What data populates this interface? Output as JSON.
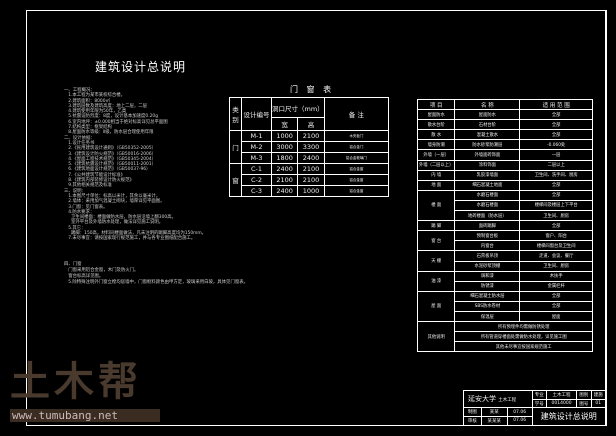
{
  "title": "建筑设计总说明",
  "notes": [
    "一、工程概况：",
    "   1.本工程为某市某校综合楼。",
    "   2.建筑面积：8000㎡",
    "   3.建筑层数及建筑高度：地上二层，二层",
    "   4.建筑使用年限为50年，乙类",
    "   5.抗震设防烈度：8度，设计基本加速度0.20g",
    "   6.室内地坪：±0.000相当于绝对标高详见总平面图",
    "   7.结构类型：框架结构",
    "   8.屋面防水等级：Ⅱ级，防水层合理使用年限",
    "二、设计依据：",
    "   1.设计任务书",
    "   2.《民用建筑设计通则》（GB50352-2005）",
    "   3.《建筑设计防火规范》（GB50016-2006）",
    "   4.《屋面工程技术规范》（GB50345-2004）",
    "   5.《建筑抗震设计规范》（GB50011-2001）",
    "   6.《建筑地面设计规范》（GB50037-96）",
    "   7.《公共建筑节能设计标准》",
    "   8.《建筑内部装修设计防火规范》",
    "   9.其他相关规范及标准",
    "三、说明：",
    "   1.本图尺寸单位：标高以米计，其余以毫米计。",
    "   2.墙体：采用加气混凝土砌块，墙厚详见平面图。",
    "   3.门窗：见门窗表。",
    "   4.防水要求：",
    "     卫生间楼面：楼面做防水层，防水层沿墙上翻300高。",
    "     室外平台及外墙防水处理，做法详见施工说明。",
    "   5.其它：",
    "     踢脚：150高，材料同楼面做法，凡未注明的踢脚高度均为150mm。",
    "   7.未尽事宜：请按国家现行规范施工，并与各专业图纸配合施工。"
  ],
  "notes2": [
    "四、门窗",
    "   门窗采用铝合金窗，木门及防火门。",
    "   窗台标高详见图。",
    "   5.除特殊注明外门窗立樘均居墙中，门窗框料颜色由甲方定，玻璃采用白玻，具体见门窗表。"
  ],
  "door_window": {
    "title": "门 窗 表",
    "headers": {
      "type": "类别",
      "code": "设计编号",
      "size": "洞口尺寸（mm）",
      "width": "宽",
      "height": "高",
      "remark": "备 注"
    },
    "groups": [
      {
        "type": "门",
        "rows": [
          [
            "M-1",
            "1000",
            "2100",
            "木夹板门"
          ],
          [
            "M-2",
            "3000",
            "3300",
            "铝合金门"
          ],
          [
            "M-3",
            "1800",
            "2400",
            "铝合金玻璃门"
          ]
        ]
      },
      {
        "type": "窗",
        "rows": [
          [
            "C-1",
            "2400",
            "2100",
            "铝合金窗"
          ],
          [
            "C-2",
            "2100",
            "2100",
            "铝合金窗"
          ],
          [
            "C-3",
            "2400",
            "1000",
            "铝合金窗"
          ]
        ]
      }
    ]
  },
  "materials": {
    "headers": [
      "项 目",
      "名 称",
      "适 用 范 围"
    ],
    "rows": [
      [
        "屋面防水",
        "屋面防水",
        "全部"
      ],
      [
        "散水台阶",
        "石材台阶",
        "全部"
      ],
      [
        "散 水",
        "混凝土散水",
        "全部"
      ],
      [
        "墙身防潮",
        "防水砂浆防潮层",
        "-0.060处"
      ],
      [
        "外墙（一层）",
        "外墙面砖饰面",
        "一层"
      ],
      [
        "外墙（二层以上）",
        "涂料饰面",
        "二层以上"
      ],
      [
        "内 墙",
        "乳胶漆墙面",
        "卫生间、洗手间、厨房"
      ],
      [
        "地 面",
        "细石混凝土地面",
        "全部"
      ],
      [
        "楼 面",
        "水磨石楼面",
        "全部"
      ],
      [
        "",
        "水磨石楼面",
        "楼梯间及楼层上下平台"
      ],
      [
        "",
        "地砖楼面（防水层）",
        "卫生间、厨房"
      ],
      [
        "踢 脚",
        "面砖踢脚",
        "全部"
      ],
      [
        "窗 台",
        "预制窗台板",
        "窗户、阳台"
      ],
      [
        "",
        "内窗台",
        "楼梯间窗台及卫生间"
      ],
      [
        "天 棚",
        "石膏板吊顶",
        "走道、会议、餐厅"
      ],
      [
        "",
        "水泥砂浆顶棚",
        "卫生间、厨房"
      ],
      [
        "油 漆",
        "调和漆",
        "木扶手"
      ],
      [
        "",
        "防锈漆",
        "金属栏杆"
      ],
      [
        "屋 面",
        "细石混凝土防水层",
        "全部"
      ],
      [
        "",
        "SBS防水卷材",
        "全部"
      ],
      [
        "",
        "保温层",
        "屋面"
      ]
    ],
    "other_label": "其他说明",
    "other": [
      "所有预埋件均需做防锈处理",
      "所有管道穿楼面处需做防水处理，详见施工图",
      "其他未尽事宜按国家规范施工"
    ]
  },
  "title_block": {
    "school": "延安大学",
    "dept": "土木工程",
    "r1": [
      "专业",
      "土木工程",
      "图别",
      "建施"
    ],
    "r2": [
      "学号",
      "0014000",
      "图号",
      "01"
    ],
    "r3": [
      "制图",
      "某某",
      "07.06"
    ],
    "r4": [
      "审核",
      "某某某",
      "07.06"
    ],
    "drawing": "建筑设计总说明"
  },
  "watermark": {
    "logo": "土木帮",
    "url": "www.tumubang.net"
  }
}
